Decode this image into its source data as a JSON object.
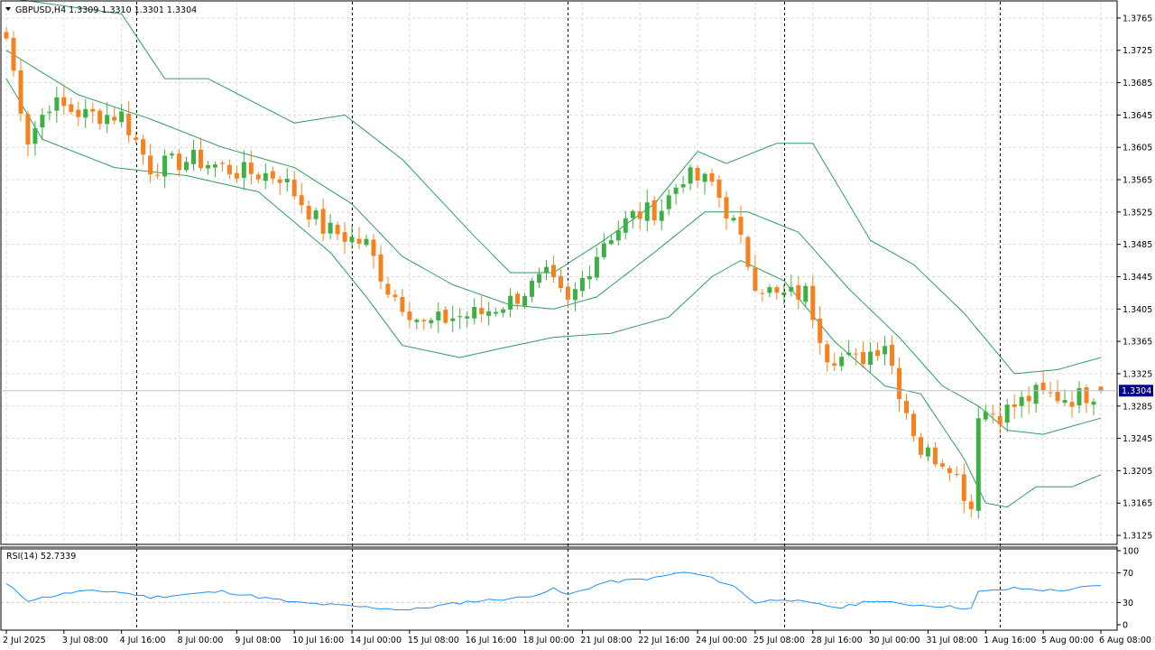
{
  "chart_data": [
    {
      "type": "candlestick",
      "title": "GBPUSD,H4  1.3309 1.3310 1.3301 1.3304",
      "symbol": "GBPUSD",
      "timeframe": "H4",
      "ohlc_last": {
        "open": 1.3309,
        "high": 1.331,
        "low": 1.3301,
        "close": 1.3304
      },
      "current_price_label": "1.3304",
      "current_price": 1.3304,
      "ylim": [
        1.3115,
        1.3785
      ],
      "y_ticks": [
        "1.3765",
        "1.3725",
        "1.3685",
        "1.3645",
        "1.3605",
        "1.3565",
        "1.3525",
        "1.3485",
        "1.3445",
        "1.3405",
        "1.3365",
        "1.3325",
        "1.3285",
        "1.3245",
        "1.3205",
        "1.3165",
        "1.3125"
      ],
      "x_ticks": [
        "2 Jul 2025",
        "3 Jul 08:00",
        "4 Jul 16:00",
        "8 Jul 00:00",
        "9 Jul 08:00",
        "10 Jul 16:00",
        "14 Jul 00:00",
        "15 Jul 08:00",
        "16 Jul 16:00",
        "18 Jul 00:00",
        "21 Jul 08:00",
        "22 Jul 16:00",
        "24 Jul 00:00",
        "25 Jul 08:00",
        "28 Jul 16:00",
        "30 Jul 00:00",
        "31 Jul 08:00",
        "1 Aug 16:00",
        "5 Aug 00:00",
        "6 Aug 08:00"
      ],
      "x_tick_bar_index": [
        0,
        8,
        16,
        24,
        32,
        40,
        48,
        56,
        64,
        72,
        80,
        88,
        96,
        104,
        112,
        120,
        128,
        136,
        144,
        152
      ],
      "period_separators_bar_index": [
        18,
        48,
        78,
        108,
        138
      ],
      "colors": {
        "bull": "#3cb043",
        "bear": "#f58220",
        "bands": "#2e9e5b",
        "rsi": "#1e90ff",
        "grid": "#d8d8d8"
      },
      "keypoints_close": [
        [
          0,
          1.374
        ],
        [
          3,
          1.3615
        ],
        [
          6,
          1.366
        ],
        [
          11,
          1.3645
        ],
        [
          16,
          1.3645
        ],
        [
          20,
          1.358
        ],
        [
          26,
          1.359
        ],
        [
          32,
          1.3575
        ],
        [
          38,
          1.357
        ],
        [
          44,
          1.3505
        ],
        [
          50,
          1.3485
        ],
        [
          53,
          1.343
        ],
        [
          58,
          1.3385
        ],
        [
          62,
          1.3395
        ],
        [
          66,
          1.34
        ],
        [
          70,
          1.3415
        ],
        [
          75,
          1.3445
        ],
        [
          78,
          1.341
        ],
        [
          83,
          1.349
        ],
        [
          87,
          1.352
        ],
        [
          91,
          1.353
        ],
        [
          94,
          1.357
        ],
        [
          98,
          1.356
        ],
        [
          101,
          1.351
        ],
        [
          104,
          1.344
        ],
        [
          107,
          1.342
        ],
        [
          111,
          1.3425
        ],
        [
          114,
          1.335
        ],
        [
          118,
          1.334
        ],
        [
          122,
          1.3365
        ],
        [
          124,
          1.3305
        ],
        [
          127,
          1.323
        ],
        [
          131,
          1.3215
        ],
        [
          134,
          1.316
        ],
        [
          135,
          1.328
        ],
        [
          138,
          1.3275
        ],
        [
          143,
          1.33
        ],
        [
          148,
          1.3295
        ],
        [
          152,
          1.3304
        ]
      ],
      "bollinger_bands": {
        "period": 20,
        "upper": [
          [
            0,
            1.379
          ],
          [
            16,
            1.377
          ],
          [
            22,
            1.369
          ],
          [
            28,
            1.369
          ],
          [
            40,
            1.3635
          ],
          [
            47,
            1.3645
          ],
          [
            55,
            1.359
          ],
          [
            65,
            1.3495
          ],
          [
            70,
            1.345
          ],
          [
            76,
            1.345
          ],
          [
            83,
            1.349
          ],
          [
            90,
            1.3535
          ],
          [
            96,
            1.36
          ],
          [
            100,
            1.3585
          ],
          [
            107,
            1.361
          ],
          [
            112,
            1.361
          ],
          [
            120,
            1.349
          ],
          [
            126,
            1.346
          ],
          [
            133,
            1.34
          ],
          [
            140,
            1.3325
          ],
          [
            146,
            1.333
          ],
          [
            152,
            1.3345
          ]
        ],
        "middle": [
          [
            0,
            1.3725
          ],
          [
            10,
            1.367
          ],
          [
            20,
            1.364
          ],
          [
            30,
            1.3605
          ],
          [
            40,
            1.358
          ],
          [
            48,
            1.3535
          ],
          [
            55,
            1.347
          ],
          [
            62,
            1.3435
          ],
          [
            70,
            1.341
          ],
          [
            76,
            1.3405
          ],
          [
            82,
            1.342
          ],
          [
            90,
            1.3475
          ],
          [
            97,
            1.3525
          ],
          [
            103,
            1.3525
          ],
          [
            110,
            1.35
          ],
          [
            117,
            1.343
          ],
          [
            124,
            1.337
          ],
          [
            130,
            1.331
          ],
          [
            135,
            1.3285
          ],
          [
            139,
            1.3255
          ],
          [
            144,
            1.325
          ],
          [
            152,
            1.327
          ]
        ],
        "lower": [
          [
            0,
            1.369
          ],
          [
            5,
            1.3615
          ],
          [
            15,
            1.358
          ],
          [
            25,
            1.357
          ],
          [
            35,
            1.355
          ],
          [
            45,
            1.3475
          ],
          [
            50,
            1.342
          ],
          [
            55,
            1.336
          ],
          [
            63,
            1.3345
          ],
          [
            68,
            1.3355
          ],
          [
            76,
            1.337
          ],
          [
            84,
            1.3375
          ],
          [
            92,
            1.3395
          ],
          [
            98,
            1.3445
          ],
          [
            102,
            1.3465
          ],
          [
            108,
            1.344
          ],
          [
            115,
            1.3365
          ],
          [
            122,
            1.331
          ],
          [
            127,
            1.33
          ],
          [
            133,
            1.322
          ],
          [
            136,
            1.3165
          ],
          [
            139,
            1.316
          ],
          [
            143,
            1.3185
          ],
          [
            148,
            1.3185
          ],
          [
            152,
            1.32
          ]
        ]
      }
    },
    {
      "type": "line",
      "title": "RSI(14) 52.7339",
      "name": "RSI(14)",
      "last_value": 52.7339,
      "ylim": [
        0,
        100
      ],
      "y_ticks": [
        "100",
        "70",
        "30",
        "0"
      ],
      "levels": [
        70,
        30
      ],
      "keypoints": [
        [
          0,
          55
        ],
        [
          3,
          33
        ],
        [
          10,
          45
        ],
        [
          15,
          45
        ],
        [
          20,
          37
        ],
        [
          30,
          45
        ],
        [
          40,
          30
        ],
        [
          48,
          25
        ],
        [
          56,
          20
        ],
        [
          64,
          31
        ],
        [
          72,
          37
        ],
        [
          76,
          48
        ],
        [
          78,
          40
        ],
        [
          83,
          57
        ],
        [
          90,
          63
        ],
        [
          94,
          71
        ],
        [
          97,
          66
        ],
        [
          101,
          52
        ],
        [
          104,
          30
        ],
        [
          108,
          35
        ],
        [
          112,
          28
        ],
        [
          116,
          23
        ],
        [
          120,
          33
        ],
        [
          124,
          28
        ],
        [
          130,
          25
        ],
        [
          134,
          22
        ],
        [
          135,
          44
        ],
        [
          140,
          49
        ],
        [
          146,
          46
        ],
        [
          152,
          53
        ]
      ]
    }
  ]
}
